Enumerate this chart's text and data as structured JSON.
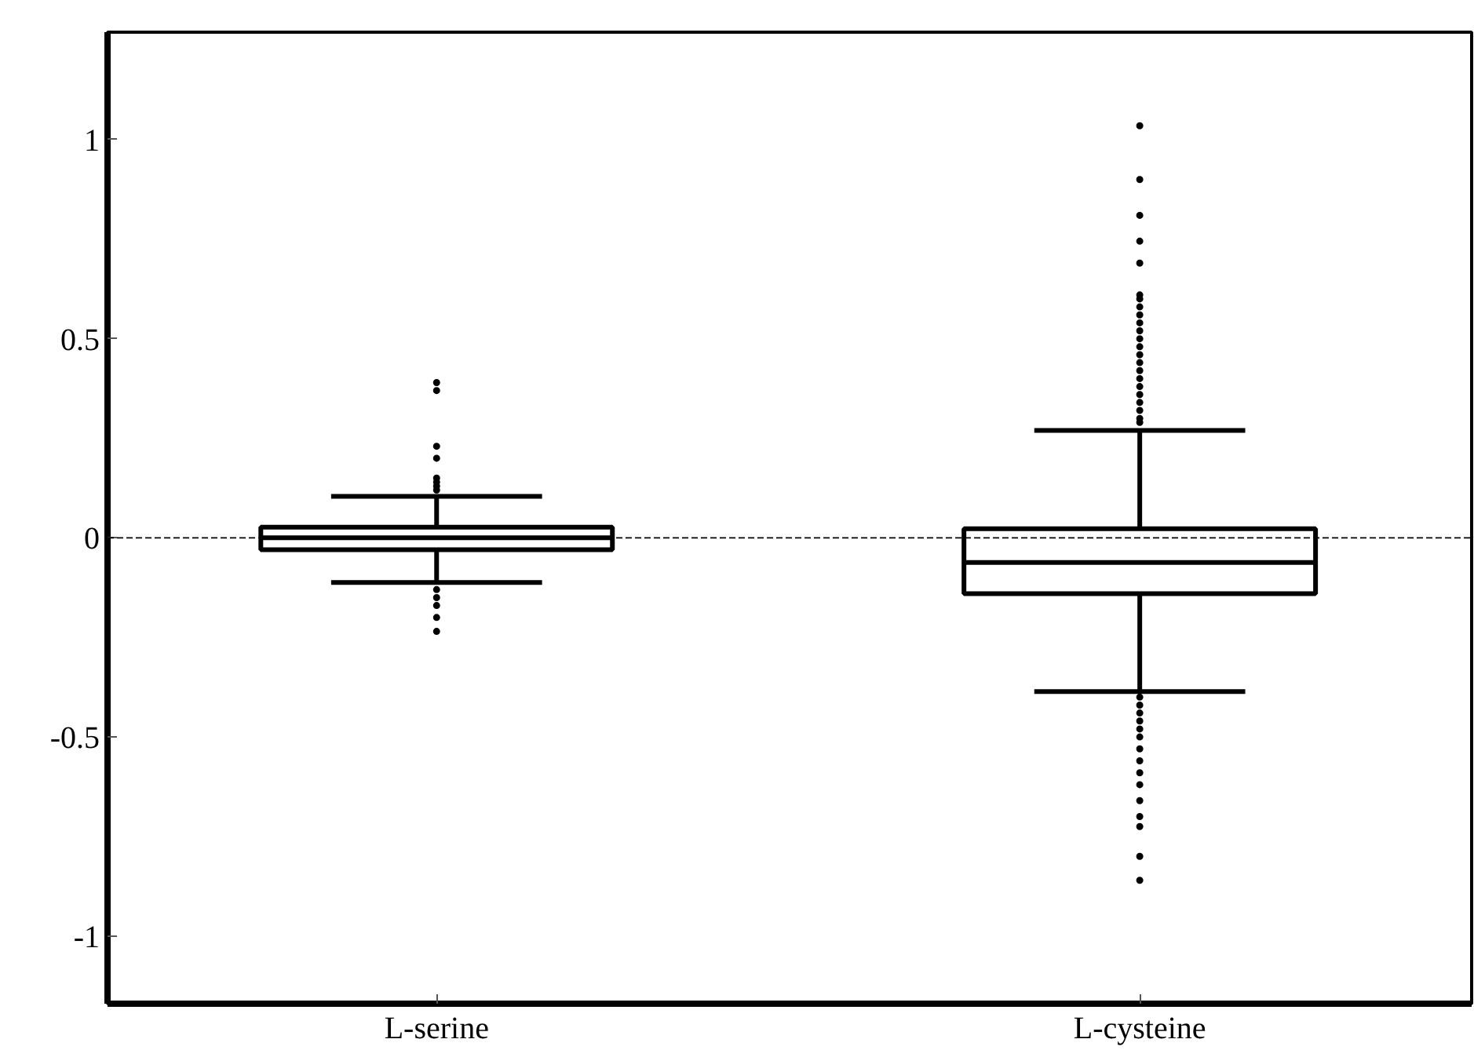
{
  "chart_data": {
    "type": "box",
    "categories": [
      "L-serine",
      "L-cysteine"
    ],
    "boxes": [
      {
        "low": -0.112,
        "q1": -0.03,
        "median": 0.0,
        "q3": 0.027,
        "high": 0.104,
        "outliers": [
          0.39,
          0.37,
          0.23,
          0.2,
          0.15,
          0.14,
          0.13,
          0.12,
          -0.13,
          -0.15,
          -0.17,
          -0.2,
          -0.235
        ]
      },
      {
        "low": -0.386,
        "q1": -0.14,
        "median": -0.062,
        "q3": 0.023,
        "high": 0.27,
        "outliers": [
          1.035,
          0.9,
          0.81,
          0.745,
          0.69,
          0.61,
          0.6,
          0.58,
          0.56,
          0.54,
          0.52,
          0.5,
          0.48,
          0.46,
          0.44,
          0.42,
          0.4,
          0.38,
          0.36,
          0.34,
          0.32,
          0.3,
          0.29,
          -0.4,
          -0.42,
          -0.44,
          -0.46,
          -0.48,
          -0.5,
          -0.53,
          -0.56,
          -0.59,
          -0.62,
          -0.66,
          -0.7,
          -0.725,
          -0.8,
          -0.86
        ]
      }
    ],
    "ylim": [
      -1.17,
      1.27
    ],
    "yticks": [
      -1,
      -0.5,
      0,
      0.5,
      1
    ],
    "grid": false,
    "ref_lines": [
      {
        "axis": "y",
        "value": 0,
        "label": null,
        "line_style": "dashed"
      }
    ]
  }
}
